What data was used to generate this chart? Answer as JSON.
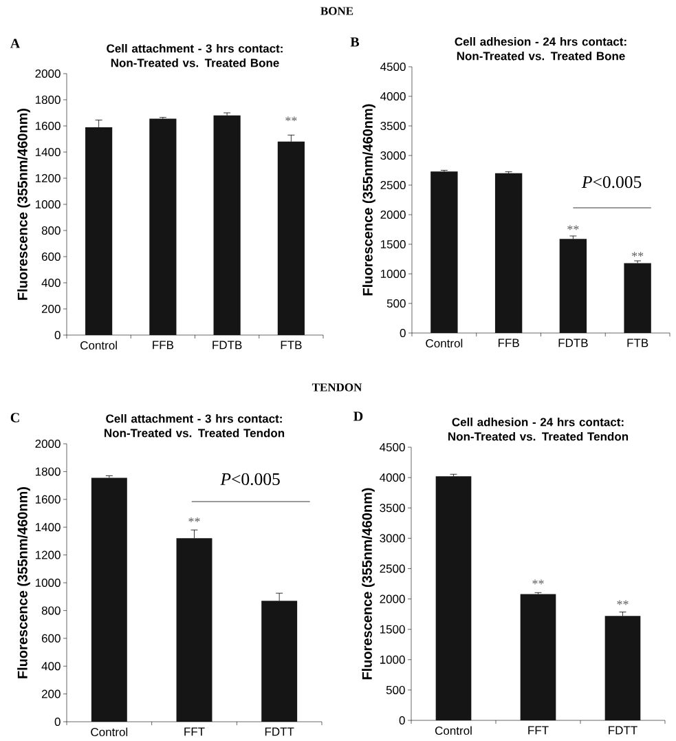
{
  "chart_data": [
    {
      "type": "bar",
      "title": "Cell attachment - 3 hrs contact: Non-Treated vs. Treated Bone",
      "ylabel": "Fluorescence (355nm/460nm)",
      "categories": [
        "Control",
        "FFB",
        "FDTB",
        "FTB"
      ],
      "values": [
        1590,
        1655,
        1680,
        1480
      ],
      "errors": [
        55,
        10,
        20,
        50
      ],
      "color": "#151515",
      "ylim": [
        0,
        2000
      ],
      "yticks": [
        0,
        200,
        400,
        600,
        800,
        1000,
        1200,
        1400,
        1600,
        1800,
        2000
      ],
      "annotations": [
        "BONE",
        "A",
        "**"
      ]
    },
    {
      "type": "bar",
      "title": "Cell adhesion - 24 hrs contact: Non-Treated vs. Treated Bone",
      "ylabel": "Fluorescence (355nm/460nm)",
      "categories": [
        "Control",
        "FFB",
        "FDTB",
        "FTB"
      ],
      "values": [
        2730,
        2700,
        1590,
        1180
      ],
      "errors": [
        20,
        25,
        50,
        40
      ],
      "color": "#151515",
      "ylim": [
        0,
        4500
      ],
      "yticks": [
        0,
        500,
        1000,
        1500,
        2000,
        2500,
        3000,
        3500,
        4000,
        4500
      ],
      "annotations": [
        "B",
        "*P*<0.005",
        "**",
        "**"
      ]
    },
    {
      "type": "bar",
      "title": "Cell attachment - 3 hrs contact: Non-Treated vs. Treated Tendon",
      "ylabel": "Fluorescence (355nm/460nm)",
      "categories": [
        "Control",
        "FFT",
        "FDTT"
      ],
      "values": [
        1755,
        1320,
        870
      ],
      "errors": [
        15,
        60,
        55
      ],
      "color": "#151515",
      "ylim": [
        0,
        2000
      ],
      "yticks": [
        0,
        200,
        400,
        600,
        800,
        1000,
        1200,
        1400,
        1600,
        1800,
        2000
      ],
      "annotations": [
        "TENDON",
        "C",
        "*P*<0.005",
        "**"
      ]
    },
    {
      "type": "bar",
      "title": "Cell adhesion - 24 hrs contact: Non-Treated vs. Treated Tendon",
      "ylabel": "Fluorescence (355nm/460nm)",
      "categories": [
        "Control",
        "FFT",
        "FDTT"
      ],
      "values": [
        4020,
        2080,
        1720
      ],
      "errors": [
        35,
        25,
        65
      ],
      "color": "#151515",
      "ylim": [
        0,
        4500
      ],
      "yticks": [
        0,
        500,
        1000,
        1500,
        2000,
        2500,
        3000,
        3500,
        4000,
        4500
      ],
      "annotations": [
        "D",
        "**",
        "**"
      ]
    }
  ]
}
